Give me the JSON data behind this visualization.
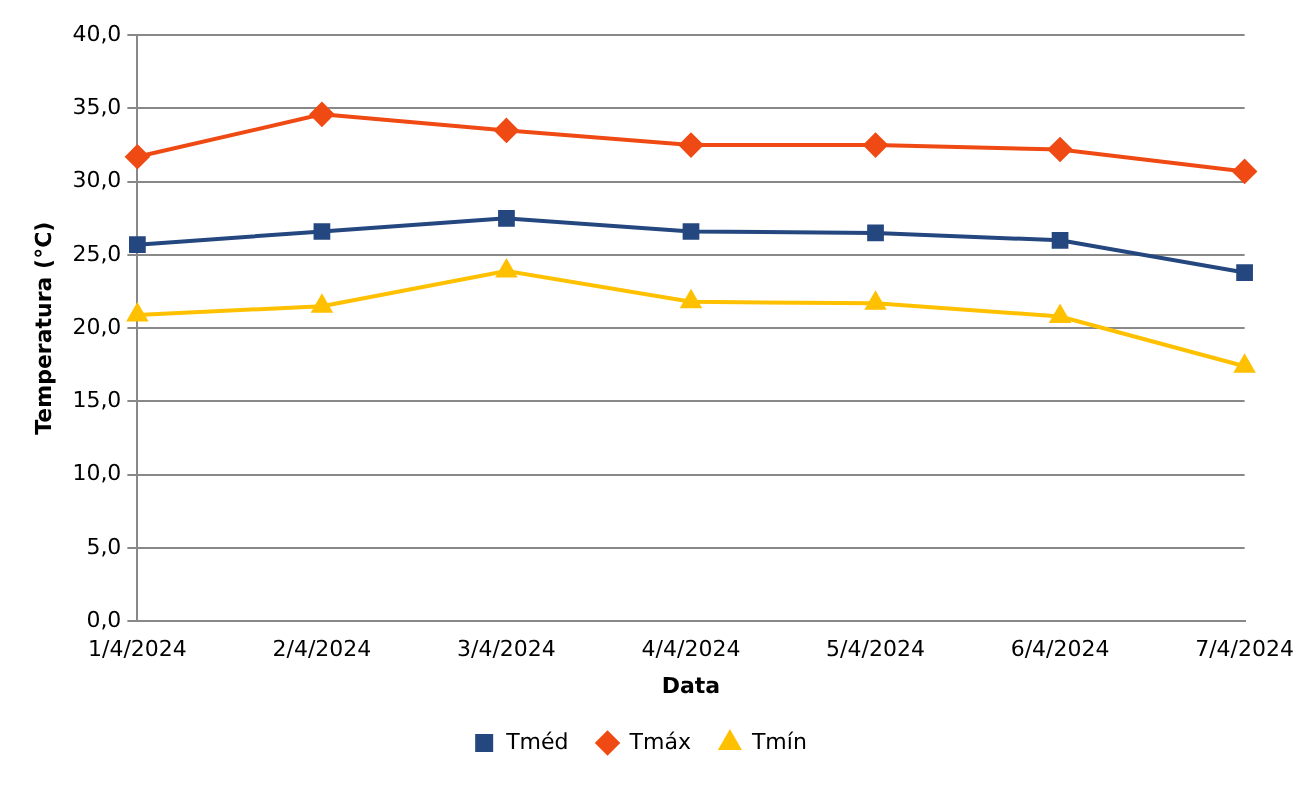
{
  "chart_data": {
    "type": "line",
    "xlabel": "Data",
    "ylabel": "Temperatura (°C)",
    "categories": [
      "1/4/2024",
      "2/4/2024",
      "3/4/2024",
      "4/4/2024",
      "5/4/2024",
      "6/4/2024",
      "7/4/2024"
    ],
    "series": [
      {
        "name": "Tméd",
        "color": "#24477f",
        "marker": "square",
        "values": [
          25.7,
          26.6,
          27.5,
          26.6,
          26.5,
          26.0,
          23.8
        ]
      },
      {
        "name": "Tmáx",
        "color": "#f04a14",
        "marker": "diamond",
        "values": [
          31.7,
          34.6,
          33.5,
          32.5,
          32.5,
          32.2,
          30.7
        ]
      },
      {
        "name": "Tmín",
        "color": "#ffc000",
        "marker": "triangle",
        "values": [
          20.9,
          21.5,
          23.9,
          21.8,
          21.7,
          20.8,
          17.4
        ]
      }
    ],
    "ylim": [
      0,
      40
    ],
    "yticks": [
      {
        "value": 0,
        "label": "0,0"
      },
      {
        "value": 5,
        "label": "5,0"
      },
      {
        "value": 10,
        "label": "10,0"
      },
      {
        "value": 15,
        "label": "15,0"
      },
      {
        "value": 20,
        "label": "20,0"
      },
      {
        "value": 25,
        "label": "25,0"
      },
      {
        "value": 30,
        "label": "30,0"
      },
      {
        "value": 35,
        "label": "35,0"
      },
      {
        "value": 40,
        "label": "40,0"
      }
    ],
    "grid": "y",
    "legend": "bottom",
    "line_style": "solid"
  }
}
